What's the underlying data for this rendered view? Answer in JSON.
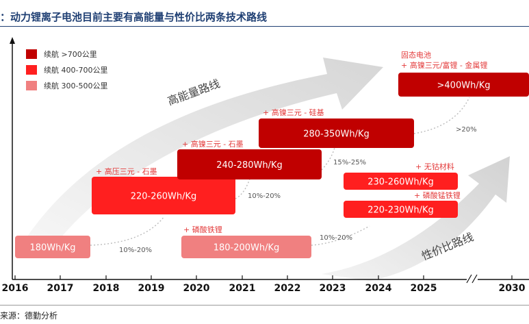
{
  "title": "：动力锂离子电池目前主要有高能量与性价比两条技术路线",
  "source": "来源：德勤分析",
  "chart_data": {
    "type": "roadmap",
    "colors": {
      "high": "#c00000",
      "mid": "#ff1f1f",
      "low": "#f08080",
      "arrow": "#e3e3e3",
      "note": "#e33b3b"
    },
    "x_ticks": [
      "2016",
      "2017",
      "2018",
      "2019",
      "2020",
      "2021",
      "2022",
      "2023",
      "2024",
      "2025",
      "2030"
    ],
    "legend": [
      {
        "label": "续航 >700公里",
        "level": "high"
      },
      {
        "label": "续航 400-700公里",
        "level": "mid"
      },
      {
        "label": "续航 300-500公里",
        "level": "low"
      }
    ],
    "routes": [
      {
        "label": "高能量路线"
      },
      {
        "label": "性价比路线"
      }
    ],
    "boxes": [
      {
        "label": "180Wh/Kg",
        "level": "low"
      },
      {
        "label": "220-260Wh/Kg",
        "level": "mid"
      },
      {
        "label": "240-280Wh/Kg",
        "level": "high"
      },
      {
        "label": "280-350Wh/Kg",
        "level": "high"
      },
      {
        "label": ">400Wh/Kg",
        "level": "high"
      },
      {
        "label": "180-200Wh/Kg",
        "level": "low"
      },
      {
        "label": "230-260Wh/Kg",
        "level": "mid"
      },
      {
        "label": "220-230Wh/Kg",
        "level": "mid"
      }
    ],
    "notes": [
      {
        "text": "+ 高压三元 - 石墨"
      },
      {
        "text": "+ 高镍三元 - 石墨"
      },
      {
        "text": "+ 高镍三元 - 硅基"
      },
      {
        "text": "固态电池"
      },
      {
        "text": "+ 高镍三元/富锂 - 金属锂"
      },
      {
        "text": "+ 磷酸铁锂"
      },
      {
        "text": "+ 无钴材料"
      },
      {
        "text": "+ 磷酸锰铁锂"
      }
    ],
    "growth": [
      {
        "text": "10%-20%"
      },
      {
        "text": "10%-20%"
      },
      {
        "text": "15%-25%"
      },
      {
        "text": ">20%"
      },
      {
        "text": "10%-20%"
      }
    ]
  }
}
